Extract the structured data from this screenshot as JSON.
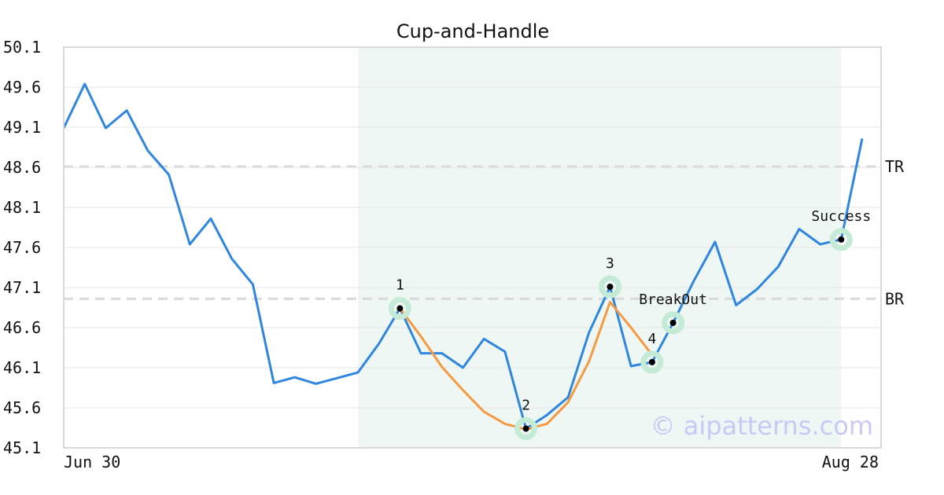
{
  "chart_data": {
    "type": "line",
    "title": "Cup-and-Handle",
    "x_tick_labels": [
      "Jun 30",
      "Aug 28"
    ],
    "ylim": [
      45.1,
      50.1
    ],
    "y_ticks": [
      "45.1",
      "45.6",
      "46.1",
      "46.6",
      "47.1",
      "47.6",
      "48.1",
      "48.6",
      "49.1",
      "49.6",
      "50.1"
    ],
    "grid": true,
    "series": [
      {
        "values": [
          49.09,
          49.64,
          49.09,
          49.31,
          48.81,
          48.51,
          47.64,
          47.96,
          47.46,
          47.14,
          45.91,
          45.98,
          45.9,
          45.97,
          46.04,
          46.4,
          46.84,
          46.28,
          46.28,
          46.1,
          46.46,
          46.3,
          45.34,
          45.51,
          45.73,
          46.54,
          47.11,
          46.12,
          46.17,
          46.66,
          47.19,
          47.67,
          46.88,
          47.08,
          47.36,
          47.83,
          47.64,
          47.7,
          48.96
        ],
        "color": "#2f86e0"
      },
      {
        "x_start": 16,
        "values": [
          46.84,
          46.49,
          46.11,
          45.82,
          45.55,
          45.4,
          45.33,
          45.4,
          45.67,
          46.18,
          46.92,
          46.6,
          46.26
        ],
        "color": "#f59a42"
      }
    ],
    "shaded_range": [
      14,
      37
    ],
    "shade_color": "#eef7f3",
    "reference_lines": [
      {
        "label": "TR",
        "value": 48.61
      },
      {
        "label": "BR",
        "value": 46.96
      }
    ],
    "markers": [
      {
        "label": "1",
        "index": 16,
        "value": 46.84,
        "label_pos": "above"
      },
      {
        "label": "2",
        "index": 22,
        "value": 45.34,
        "label_pos": "above"
      },
      {
        "label": "3",
        "index": 26,
        "value": 47.11,
        "label_pos": "above"
      },
      {
        "label": "4",
        "index": 28,
        "value": 46.17,
        "label_pos": "above"
      },
      {
        "label": "BreakOut",
        "index": 29,
        "value": 46.66,
        "label_pos": "above"
      },
      {
        "label": "Success",
        "index": 37,
        "value": 47.7,
        "label_pos": "above"
      }
    ],
    "marker_ring_color": "#c3ebd6",
    "watermark": "© aipatterns.com"
  }
}
